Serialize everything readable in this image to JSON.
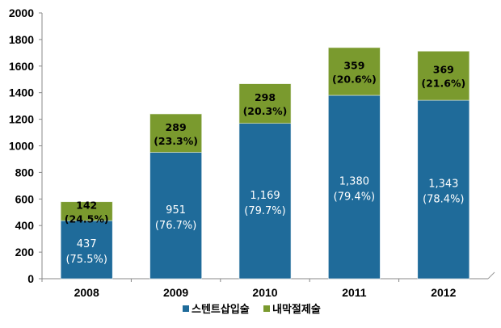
{
  "chart_data": {
    "type": "bar",
    "stacked": true,
    "categories": [
      "2008",
      "2009",
      "2010",
      "2011",
      "2012"
    ],
    "series": [
      {
        "name": "스텐트삽입술",
        "color": "#1F6B9A",
        "values": [
          437,
          951,
          1169,
          1380,
          1343
        ],
        "labels": [
          "437",
          "951",
          "1,169",
          "1,380",
          "1,343"
        ],
        "pct_labels": [
          "(75.5%)",
          "(76.7%)",
          "(79.7%)",
          "(79.4%)",
          "(78.4%)"
        ]
      },
      {
        "name": "내막절제술",
        "color": "#7A9A2E",
        "values": [
          142,
          289,
          298,
          359,
          369
        ],
        "labels": [
          "142",
          "289",
          "298",
          "359",
          "369"
        ],
        "pct_labels": [
          "(24.5%)",
          "(23.3%)",
          "(20.3%)",
          "(20.6%)",
          "(21.6%)"
        ]
      }
    ],
    "ylim": [
      0,
      2000
    ],
    "yticks": [
      "0",
      "200",
      "400",
      "600",
      "800",
      "1000",
      "1200",
      "1400",
      "1600",
      "1800",
      "2000"
    ],
    "grid": false,
    "legend_position": "bottom"
  }
}
